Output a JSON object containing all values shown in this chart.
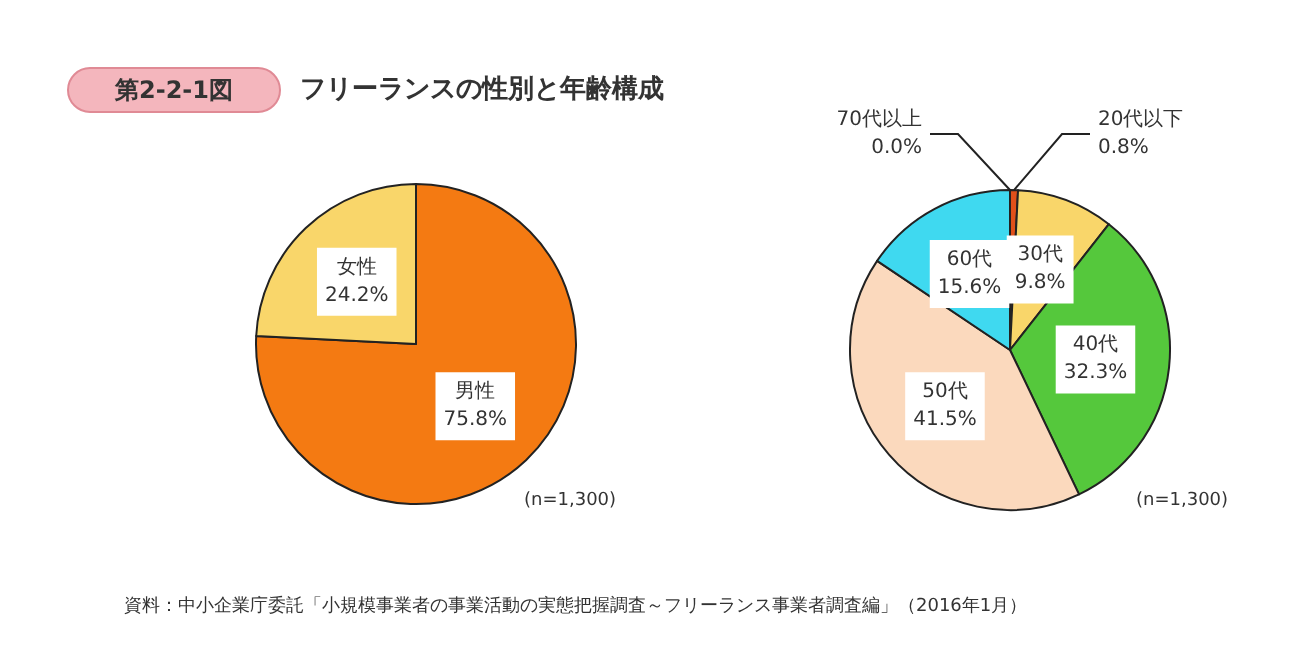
{
  "chart_data": [
    {
      "type": "pie",
      "title": "フリーランスの性別と年齢構成",
      "categories": [
        "男性",
        "女性"
      ],
      "values": [
        75.8,
        24.2
      ],
      "colors": [
        "#f47a12",
        "#f9d66a"
      ],
      "value_labels": [
        "75.8%",
        "24.2%"
      ],
      "annotations": [
        "第2-2-1図",
        "(n=1,300)",
        "資料：中小企業庁委託「小規模事業者の事業活動の実態把握調査～フリーランス事業者調査編」（2016年1月）"
      ]
    },
    {
      "type": "pie",
      "categories": [
        "20代以下",
        "30代",
        "40代",
        "50代",
        "60代",
        "70代以上"
      ],
      "values": [
        0.8,
        9.8,
        32.3,
        41.5,
        15.6,
        0.0
      ],
      "colors": [
        "#e0501a",
        "#f9d66a",
        "#55c83c",
        "#fbd9bd",
        "#3fd9f0",
        "#7a7a7a"
      ],
      "value_labels": [
        "0.8%",
        "9.8%",
        "32.3%",
        "41.5%",
        "15.6%",
        "0.0%"
      ],
      "annotations": [
        "(n=1,300)"
      ]
    }
  ]
}
